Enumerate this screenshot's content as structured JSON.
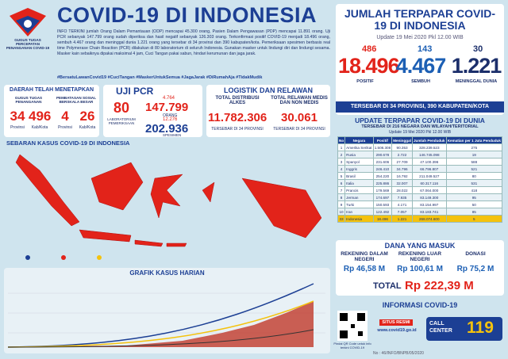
{
  "header": {
    "title": "COVID-19 DI INDONESIA",
    "logo_text": "GUGUS TUGAS PERCEPATAN PENANGANAN COVID-19",
    "body": "INFO TERKINI jumlah Orang Dalam Pemantauan (ODP) mencapai 45.300 orang, Pasien Dalam Pengawasan (PDP) mencapai 11.891 orang. Uji PCR sebanyak 147.799 orang sudah diperiksa dan hasil negatif sebanyak 126.303 orang. Terkonfirmasi positif COVID-19 menjadi 18.496 orang, sembuh 4.467 orang dan meninggal dunia 1.221 orang yang tersebar di 34 provinsi dan 390 kabupaten/kota. Pemeriksaan spesimen berbasis real time Polymerase Chain Reaction (PCR) dilakukan di 80 laboratorium di seluruh Indonesia. Gunakan masker untuk lindungi diri dan lindungi sesama. Masker kain sebaiknya dipakai maksimal 4 jam, Cuci Tangan pakai sabun, hindari kerumunan dan jaga jarak.",
    "hashtags": "#BersatuLawanCovid19 #CuciTangan #MaskerUntukSemua #JagaJarak #DiRumahAja #TidakMudik"
  },
  "summary": {
    "title": "JUMLAH TERPAPAR COVID-19 DI INDONESIA",
    "update": "Update 19 Mei 2020 Pkl 12.00 WIB",
    "stats": [
      {
        "delta": "486",
        "total": "18.496",
        "label": "POSITIF"
      },
      {
        "delta": "143",
        "total": "4.467",
        "label": "SEMBUH"
      },
      {
        "delta": "30",
        "total": "1.221",
        "label": "MENINGGAL DUNIA"
      }
    ],
    "spread": "TERSEBAR DI 34 PROVINSI, 390 KABUPATEN/KOTA"
  },
  "regions": {
    "title": "DAERAH TELAH MENETAPKAN",
    "groups": [
      {
        "label": "GUGUS TUGAS PENANGANAN",
        "items": [
          {
            "value": "34",
            "label": "Provinsi"
          },
          {
            "value": "496",
            "label": "Kab/Kota"
          }
        ]
      },
      {
        "label": "PEMBATASAN SOSIAL BERSKALA BESAR",
        "items": [
          {
            "value": "4",
            "label": "Provinsi"
          },
          {
            "value": "26",
            "label": "Kab/Kota"
          }
        ]
      }
    ]
  },
  "pcr": {
    "title": "UJI PCR",
    "labs": "80",
    "labs_label": "LABORATORIUM PEMERIKSAAN",
    "people_delta": "4.764",
    "people": "147.799",
    "people_label": "ORANG",
    "specimen_delta": "12.276",
    "specimen": "202.936",
    "specimen_label": "SPESIMEN"
  },
  "logistics": {
    "title": "LOGISTIK DAN RELAWAN",
    "items": [
      {
        "label": "TOTAL DISTRIBUSI ALKES",
        "value": "11.782.306",
        "note": "TERSEBAR DI 34 PROVINSI"
      },
      {
        "label": "TOTAL RELAWAN MEDIS DAN NON MEDIS",
        "value": "30.061",
        "note": "TERSEBAR DI 34 PROVINSI"
      }
    ]
  },
  "map": {
    "title": "SEBARAN KASUS COVID-19 DI INDONESIA"
  },
  "daily_chart": {
    "title": "GRAFIK KASUS HARIAN"
  },
  "world": {
    "title": "UPDATE TERPAPAR COVID-19 DI DUNIA",
    "subtitle": "TERSEBAR DI 216 NEGARA DAN WILAYAH/TERITORIAL",
    "update": "Update 19 Mei 2020 Pkl 12.00 WIB",
    "columns": [
      "No",
      "Negara",
      "Positif",
      "Meninggal",
      "Jumlah Penduduk",
      "Kematian per 1 Juta Penduduk"
    ],
    "rows": [
      [
        "1",
        "Amerika Serikat",
        "1.508.308",
        "90.353",
        "328.239.523",
        "275"
      ],
      [
        "2",
        "Rusia",
        "290.678",
        "2.722",
        "146.745.098",
        "19"
      ],
      [
        "3",
        "Spanyol",
        "231.606",
        "27.709",
        "47.100.396",
        "588"
      ],
      [
        "4",
        "Inggris",
        "246.410",
        "34.796",
        "66.796.807",
        "521"
      ],
      [
        "5",
        "Brasil",
        "254.220",
        "16.792",
        "211.049.527",
        "80"
      ],
      [
        "6",
        "Italia",
        "225.886",
        "32.007",
        "60.317.116",
        "531"
      ],
      [
        "7",
        "Prancis",
        "179.569",
        "28.022",
        "67.064.000",
        "418"
      ],
      [
        "8",
        "Jerman",
        "174.697",
        "7.935",
        "83.149.300",
        "95"
      ],
      [
        "9",
        "Turki",
        "150.593",
        "4.171",
        "83.154.997",
        "50"
      ],
      [
        "10",
        "Iran",
        "122.492",
        "7.057",
        "83.183.741",
        "85"
      ],
      [
        "33",
        "Indonesia",
        "18.496",
        "1.221",
        "268.074.600",
        "5"
      ]
    ]
  },
  "funds": {
    "title": "DANA YANG MASUK",
    "items": [
      {
        "label": "REKENING DALAM NEGERI",
        "value": "Rp 46,58 M"
      },
      {
        "label": "REKENING LUAR NEGERI",
        "value": "Rp 100,61 M"
      },
      {
        "label": "DONASI",
        "value": "Rp 75,2 M"
      }
    ],
    "total_label": "TOTAL",
    "total": "Rp 222,39 M"
  },
  "info": {
    "title": "INFORMASI COVID-19",
    "qr_caption": "Pindai QR Code untuk info terkini COVID-19",
    "site_label": "SITUS RESMI",
    "site": "www.covid19.go.id",
    "call": "CALL CENTER",
    "number": "119"
  },
  "footer": "No : 46/INFO/BNPB/05/2020"
}
